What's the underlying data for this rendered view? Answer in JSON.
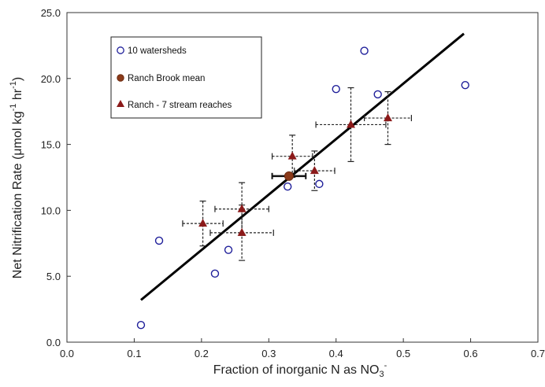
{
  "chart_data": {
    "type": "scatter",
    "xlabel": "Fraction of inorganic N as NO",
    "xlabel_sub": "3",
    "xlabel_sup": "-",
    "ylabel_main": "Net Nitrification Rate (",
    "ylabel_mu": "μmol kg",
    "ylabel_sup1": "-1",
    "ylabel_mid": " hr",
    "ylabel_sup2": "-1",
    "ylabel_end": ")",
    "xlim": [
      0,
      0.7
    ],
    "ylim": [
      0,
      25
    ],
    "x_ticks": [
      "0.0",
      "0.1",
      "0.2",
      "0.3",
      "0.4",
      "0.5",
      "0.6",
      "0.7"
    ],
    "y_ticks": [
      "0.0",
      "5.0",
      "10.0",
      "15.0",
      "20.0",
      "25.0"
    ],
    "grid": false,
    "legend_placement": "top-left",
    "series": [
      {
        "name": "10 watersheds",
        "marker": "open-circle",
        "color": "#1f1f9a",
        "points": [
          {
            "x": 0.11,
            "y": 1.3
          },
          {
            "x": 0.137,
            "y": 7.7
          },
          {
            "x": 0.22,
            "y": 5.2
          },
          {
            "x": 0.24,
            "y": 7.0
          },
          {
            "x": 0.328,
            "y": 11.8
          },
          {
            "x": 0.375,
            "y": 12.0
          },
          {
            "x": 0.4,
            "y": 19.2
          },
          {
            "x": 0.442,
            "y": 22.1
          },
          {
            "x": 0.462,
            "y": 18.8
          },
          {
            "x": 0.592,
            "y": 19.5
          }
        ]
      },
      {
        "name": "Ranch Brook mean",
        "marker": "filled-circle",
        "color": "#8b3a1a",
        "points": [
          {
            "x": 0.33,
            "y": 12.6,
            "xerr": 0.025,
            "yerr": 0.0
          }
        ]
      },
      {
        "name": "Ranch - 7 stream reaches",
        "marker": "filled-triangle",
        "color": "#8b1a1a",
        "points": [
          {
            "x": 0.202,
            "y": 9.0,
            "xerr": 0.03,
            "yerr": 1.7
          },
          {
            "x": 0.26,
            "y": 10.1,
            "xerr": 0.04,
            "yerr": 2.0
          },
          {
            "x": 0.26,
            "y": 8.3,
            "xerr": 0.047,
            "yerr": 2.1
          },
          {
            "x": 0.335,
            "y": 14.1,
            "xerr": 0.03,
            "yerr": 1.6
          },
          {
            "x": 0.368,
            "y": 13.0,
            "xerr": 0.03,
            "yerr": 1.5
          },
          {
            "x": 0.422,
            "y": 16.5,
            "xerr": 0.052,
            "yerr": 2.8
          },
          {
            "x": 0.477,
            "y": 17.0,
            "xerr": 0.035,
            "yerr": 2.0
          }
        ]
      }
    ],
    "trendline": {
      "x": [
        0.11,
        0.59
      ],
      "y": [
        3.2,
        23.4
      ],
      "color": "#000000"
    }
  }
}
